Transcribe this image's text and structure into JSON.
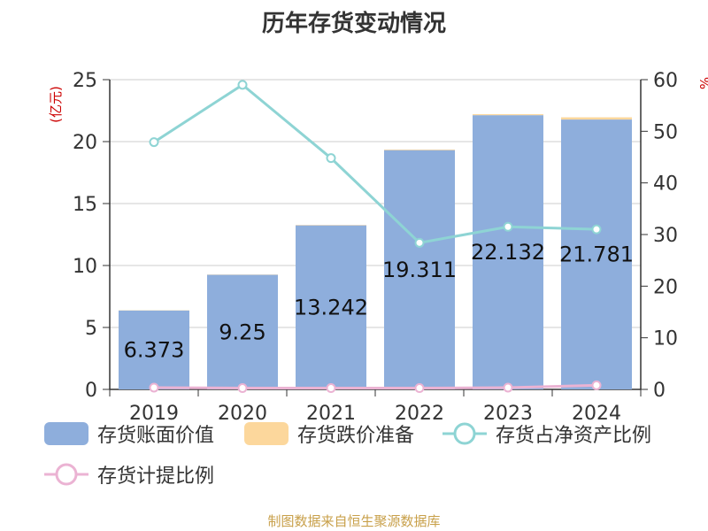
{
  "title": "历年存货变动情况",
  "source": "制图数据来自恒生聚源数据库",
  "chart_data": {
    "type": "bar",
    "categories": [
      "2019",
      "2020",
      "2021",
      "2022",
      "2023",
      "2024"
    ],
    "y_left": {
      "label": "(亿元)",
      "min": 0,
      "max": 25,
      "ticks": [
        0,
        5,
        10,
        15,
        20,
        25
      ]
    },
    "y_right": {
      "label": "%",
      "min": 0,
      "max": 60,
      "ticks": [
        0,
        10,
        20,
        30,
        40,
        50,
        60
      ]
    },
    "grid": true,
    "legend_position": "bottom",
    "series": [
      {
        "name": "存货账面价值",
        "type": "bar",
        "axis": "left",
        "color": "#8eaedc",
        "values": [
          6.373,
          9.25,
          13.242,
          19.311,
          22.132,
          21.781
        ],
        "labels": [
          "6.373",
          "9.25",
          "13.242",
          "19.311",
          "22.132",
          "21.781"
        ]
      },
      {
        "name": "存货跌价准备",
        "type": "bar",
        "axis": "left",
        "color": "#fcd79c",
        "values": [
          0.02,
          0.02,
          0.03,
          0.05,
          0.08,
          0.18
        ]
      },
      {
        "name": "存货占净资产比例",
        "type": "line",
        "axis": "right",
        "color": "#8ed4d4",
        "values": [
          47.9,
          59.0,
          44.8,
          28.4,
          31.5,
          31.0
        ]
      },
      {
        "name": "存货计提比例",
        "type": "line",
        "axis": "right",
        "color": "#ebb3d3",
        "values": [
          0.35,
          0.25,
          0.25,
          0.25,
          0.35,
          0.8
        ]
      }
    ]
  }
}
